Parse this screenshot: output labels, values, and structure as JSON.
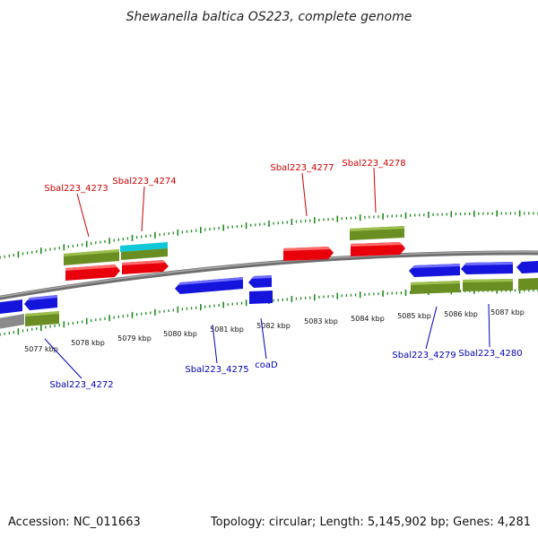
{
  "title": "Shewanella baltica OS223, complete genome",
  "footer": {
    "accession": "Accession: NC_011663",
    "topology": "Topology: circular; Length: 5,145,902 bp; Genes: 4,281"
  },
  "colors": {
    "forward_cds": "#e8000b",
    "reverse_cds": "#1414dd",
    "gene_green": "#6b8e23",
    "rna_cyan": "#10c8d8",
    "tick_green": "#218a21",
    "backbone": "#7a7a7a",
    "label_red": "#cc0000",
    "label_blue": "#0000bb"
  },
  "kbp_labels": [
    "5077 kbp",
    "5078 kbp",
    "5079 kbp",
    "5080 kbp",
    "5081 kbp",
    "5082 kbp",
    "5083 kbp",
    "5084 kbp",
    "5085 kbp",
    "5086 kbp",
    "5087 kbp"
  ],
  "gene_labels_top": [
    "Sbal223_4273",
    "Sbal223_4274",
    "Sbal223_4277",
    "Sbal223_4278"
  ],
  "gene_labels_bottom": [
    "Sbal223_4272",
    "Sbal223_4275",
    "coaD",
    "Sbal223_4279",
    "Sbal223_4280"
  ]
}
